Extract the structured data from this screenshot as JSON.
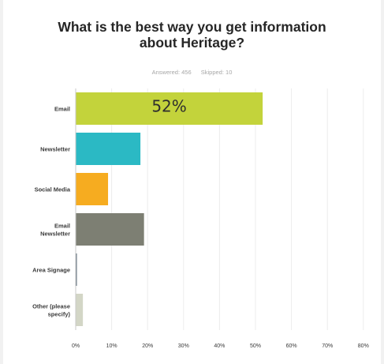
{
  "title_line1": "What is the best way you get information",
  "title_line2": "about Heritage?",
  "answered": "Answered: 456",
  "skipped": "Skipped: 10",
  "chart_data": {
    "type": "bar",
    "orientation": "horizontal",
    "title": "What is the best way you get information about Heritage?",
    "categories": [
      [
        "Email"
      ],
      [
        "Newsletter"
      ],
      [
        "Social Media"
      ],
      [
        "Email",
        "Newsletter"
      ],
      [
        "Area Signage"
      ],
      [
        "Other (please",
        "specify)"
      ]
    ],
    "values": [
      52,
      18,
      9,
      19,
      0.3,
      2
    ],
    "colors": [
      "#c3d33b",
      "#2bb9c4",
      "#f6ac20",
      "#7d7f73",
      "#5b6b7a",
      "#d3d6c6"
    ],
    "data_labels": [
      "52%",
      "",
      "",
      "",
      "",
      ""
    ],
    "x_ticks": [
      "0%",
      "10%",
      "20%",
      "30%",
      "40%",
      "50%",
      "60%",
      "70%",
      "80%"
    ],
    "xlim": [
      0,
      80
    ],
    "grid": true
  }
}
